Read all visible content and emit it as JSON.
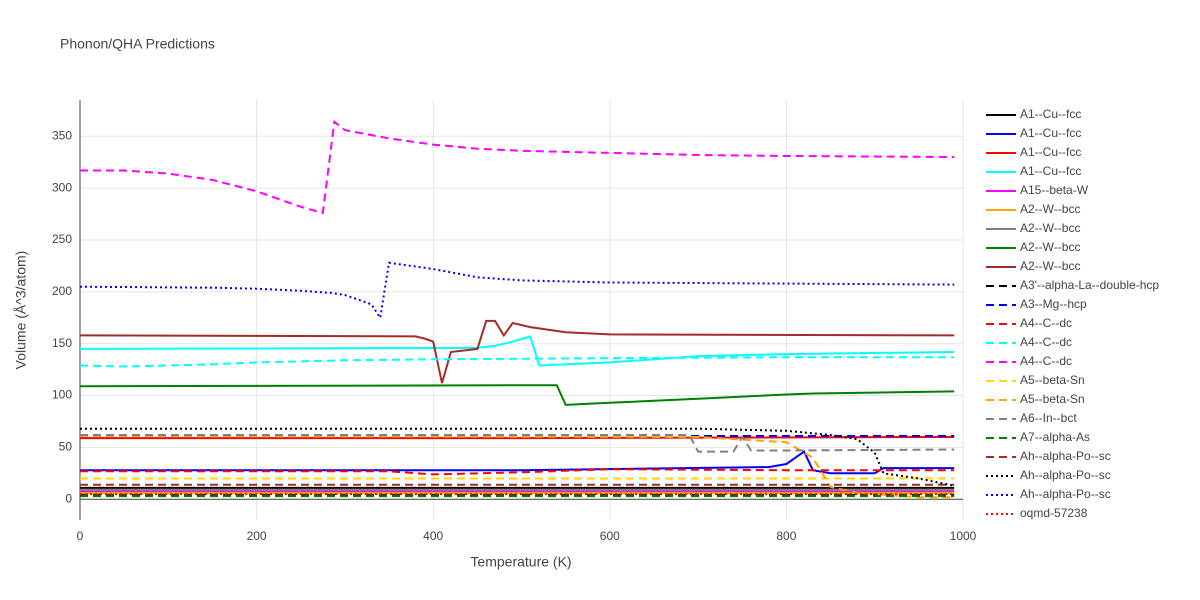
{
  "chart_data": {
    "type": "line",
    "title": "Phonon/QHA Predictions",
    "x_label": "Temperature (K)",
    "y_label": "Volume (Å^3/atom)",
    "xlim": [
      0,
      1000
    ],
    "ylim": [
      -20,
      385
    ],
    "xticks": [
      0,
      200,
      400,
      600,
      800,
      1000
    ],
    "yticks": [
      0,
      50,
      100,
      150,
      200,
      250,
      300,
      350
    ],
    "grid": true,
    "legend": "right",
    "series": [
      {
        "name": "A1--Cu--fcc",
        "color": "#000000",
        "dash": "solid",
        "x": [
          0,
          990
        ],
        "values": [
          11,
          11
        ]
      },
      {
        "name": "A1--Cu--fcc",
        "color": "#0000ff",
        "dash": "solid",
        "x": [
          0,
          500,
          780,
          800,
          820,
          830,
          850,
          900,
          910,
          990
        ],
        "values": [
          28,
          28,
          31,
          34,
          46,
          28,
          25,
          25,
          30,
          30
        ]
      },
      {
        "name": "A1--Cu--fcc",
        "color": "#ff0000",
        "dash": "solid",
        "x": [
          0,
          500,
          990
        ],
        "values": [
          59,
          59,
          60
        ]
      },
      {
        "name": "A1--Cu--fcc",
        "color": "#00ffff",
        "dash": "solid",
        "x": [
          0,
          450,
          470,
          490,
          510,
          520,
          600,
          700,
          800,
          990
        ],
        "values": [
          145,
          146,
          148,
          152,
          157,
          129,
          132,
          138,
          140,
          142
        ]
      },
      {
        "name": "A15--beta-W",
        "color": "#ff00ff",
        "dash": "solid",
        "x": [
          0,
          990
        ],
        "values": [
          8,
          8
        ]
      },
      {
        "name": "A2--W--bcc",
        "color": "#ffa500",
        "dash": "solid",
        "x": [
          0,
          990
        ],
        "values": [
          6,
          6
        ]
      },
      {
        "name": "A2--W--bcc",
        "color": "#808080",
        "dash": "solid",
        "x": [
          0,
          990
        ],
        "values": [
          9,
          9
        ]
      },
      {
        "name": "A2--W--bcc",
        "color": "#008000",
        "dash": "solid",
        "x": [
          0,
          540,
          550,
          600,
          700,
          800,
          830,
          990
        ],
        "values": [
          109,
          110,
          91,
          93,
          97,
          101,
          102,
          104
        ]
      },
      {
        "name": "A2--W--bcc",
        "color": "#a52a2a",
        "dash": "solid",
        "x": [
          0,
          380,
          390,
          400,
          410,
          420,
          450,
          460,
          470,
          480,
          490,
          510,
          550,
          600,
          990
        ],
        "values": [
          158,
          157,
          155,
          152,
          112,
          142,
          145,
          172,
          172,
          158,
          170,
          166,
          161,
          159,
          158
        ]
      },
      {
        "name": "A3'--alpha-La--double-hcp",
        "color": "#000000",
        "dash": "dash",
        "x": [
          0,
          990
        ],
        "values": [
          4,
          4
        ]
      },
      {
        "name": "A3--Mg--hcp",
        "color": "#0000ff",
        "dash": "dash",
        "x": [
          0,
          990
        ],
        "values": [
          61,
          61
        ]
      },
      {
        "name": "A4--C--dc",
        "color": "#ff0000",
        "dash": "dash",
        "x": [
          0,
          350,
          400,
          500,
          600,
          800,
          990
        ],
        "values": [
          27,
          27,
          24,
          26,
          29,
          28,
          28
        ]
      },
      {
        "name": "A4--C--dc",
        "color": "#00ffff",
        "dash": "dash",
        "x": [
          0,
          50,
          150,
          200,
          300,
          400,
          600,
          800,
          990
        ],
        "values": [
          129,
          128,
          130,
          132,
          134,
          135,
          136,
          137,
          137
        ]
      },
      {
        "name": "A4--C--dc",
        "color": "#ff00ff",
        "dash": "dash",
        "x": [
          0,
          50,
          100,
          150,
          200,
          250,
          275,
          288,
          300,
          350,
          400,
          450,
          500,
          600,
          700,
          800,
          990
        ],
        "values": [
          317,
          317,
          314,
          308,
          297,
          282,
          276,
          364,
          356,
          348,
          342,
          338,
          336,
          334,
          332,
          331,
          330
        ]
      },
      {
        "name": "A5--beta-Sn",
        "color": "#ffd700",
        "dash": "dash",
        "x": [
          0,
          990
        ],
        "values": [
          20,
          20
        ]
      },
      {
        "name": "A5--beta-Sn",
        "color": "#ffa500",
        "dash": "dash",
        "x": [
          0,
          700,
          800,
          830,
          850,
          880,
          950,
          990
        ],
        "values": [
          61,
          60,
          55,
          40,
          12,
          6,
          2,
          2
        ]
      },
      {
        "name": "A6--In--bct",
        "color": "#808080",
        "dash": "dash",
        "x": [
          0,
          690,
          700,
          740,
          750,
          760,
          800,
          990
        ],
        "values": [
          62,
          62,
          46,
          46,
          60,
          47,
          47,
          48
        ]
      },
      {
        "name": "A7--alpha-As",
        "color": "#008000",
        "dash": "dash",
        "x": [
          0,
          990
        ],
        "values": [
          3,
          3
        ]
      },
      {
        "name": "Ah--alpha-Po--sc",
        "color": "#a52a2a",
        "dash": "dash",
        "x": [
          0,
          990
        ],
        "values": [
          14,
          14
        ]
      },
      {
        "name": "Ah--alpha-Po--sc",
        "color": "#000000",
        "dash": "dot",
        "x": [
          0,
          700,
          800,
          850,
          880,
          900,
          910,
          950,
          990
        ],
        "values": [
          68,
          68,
          66,
          62,
          58,
          45,
          25,
          20,
          13
        ]
      },
      {
        "name": "Ah--alpha-Po--sc",
        "color": "#0000ff",
        "dash": "dot",
        "x": [
          0,
          150,
          200,
          250,
          285,
          300,
          330,
          340,
          350,
          400,
          450,
          500,
          600,
          990
        ],
        "values": [
          205,
          204,
          203,
          201,
          199,
          197,
          188,
          175,
          228,
          222,
          214,
          211,
          209,
          207
        ]
      },
      {
        "name": "oqmd-57238",
        "color": "#ff0000",
        "dash": "dot",
        "x": [
          0,
          990
        ],
        "values": [
          5,
          5
        ]
      }
    ]
  }
}
